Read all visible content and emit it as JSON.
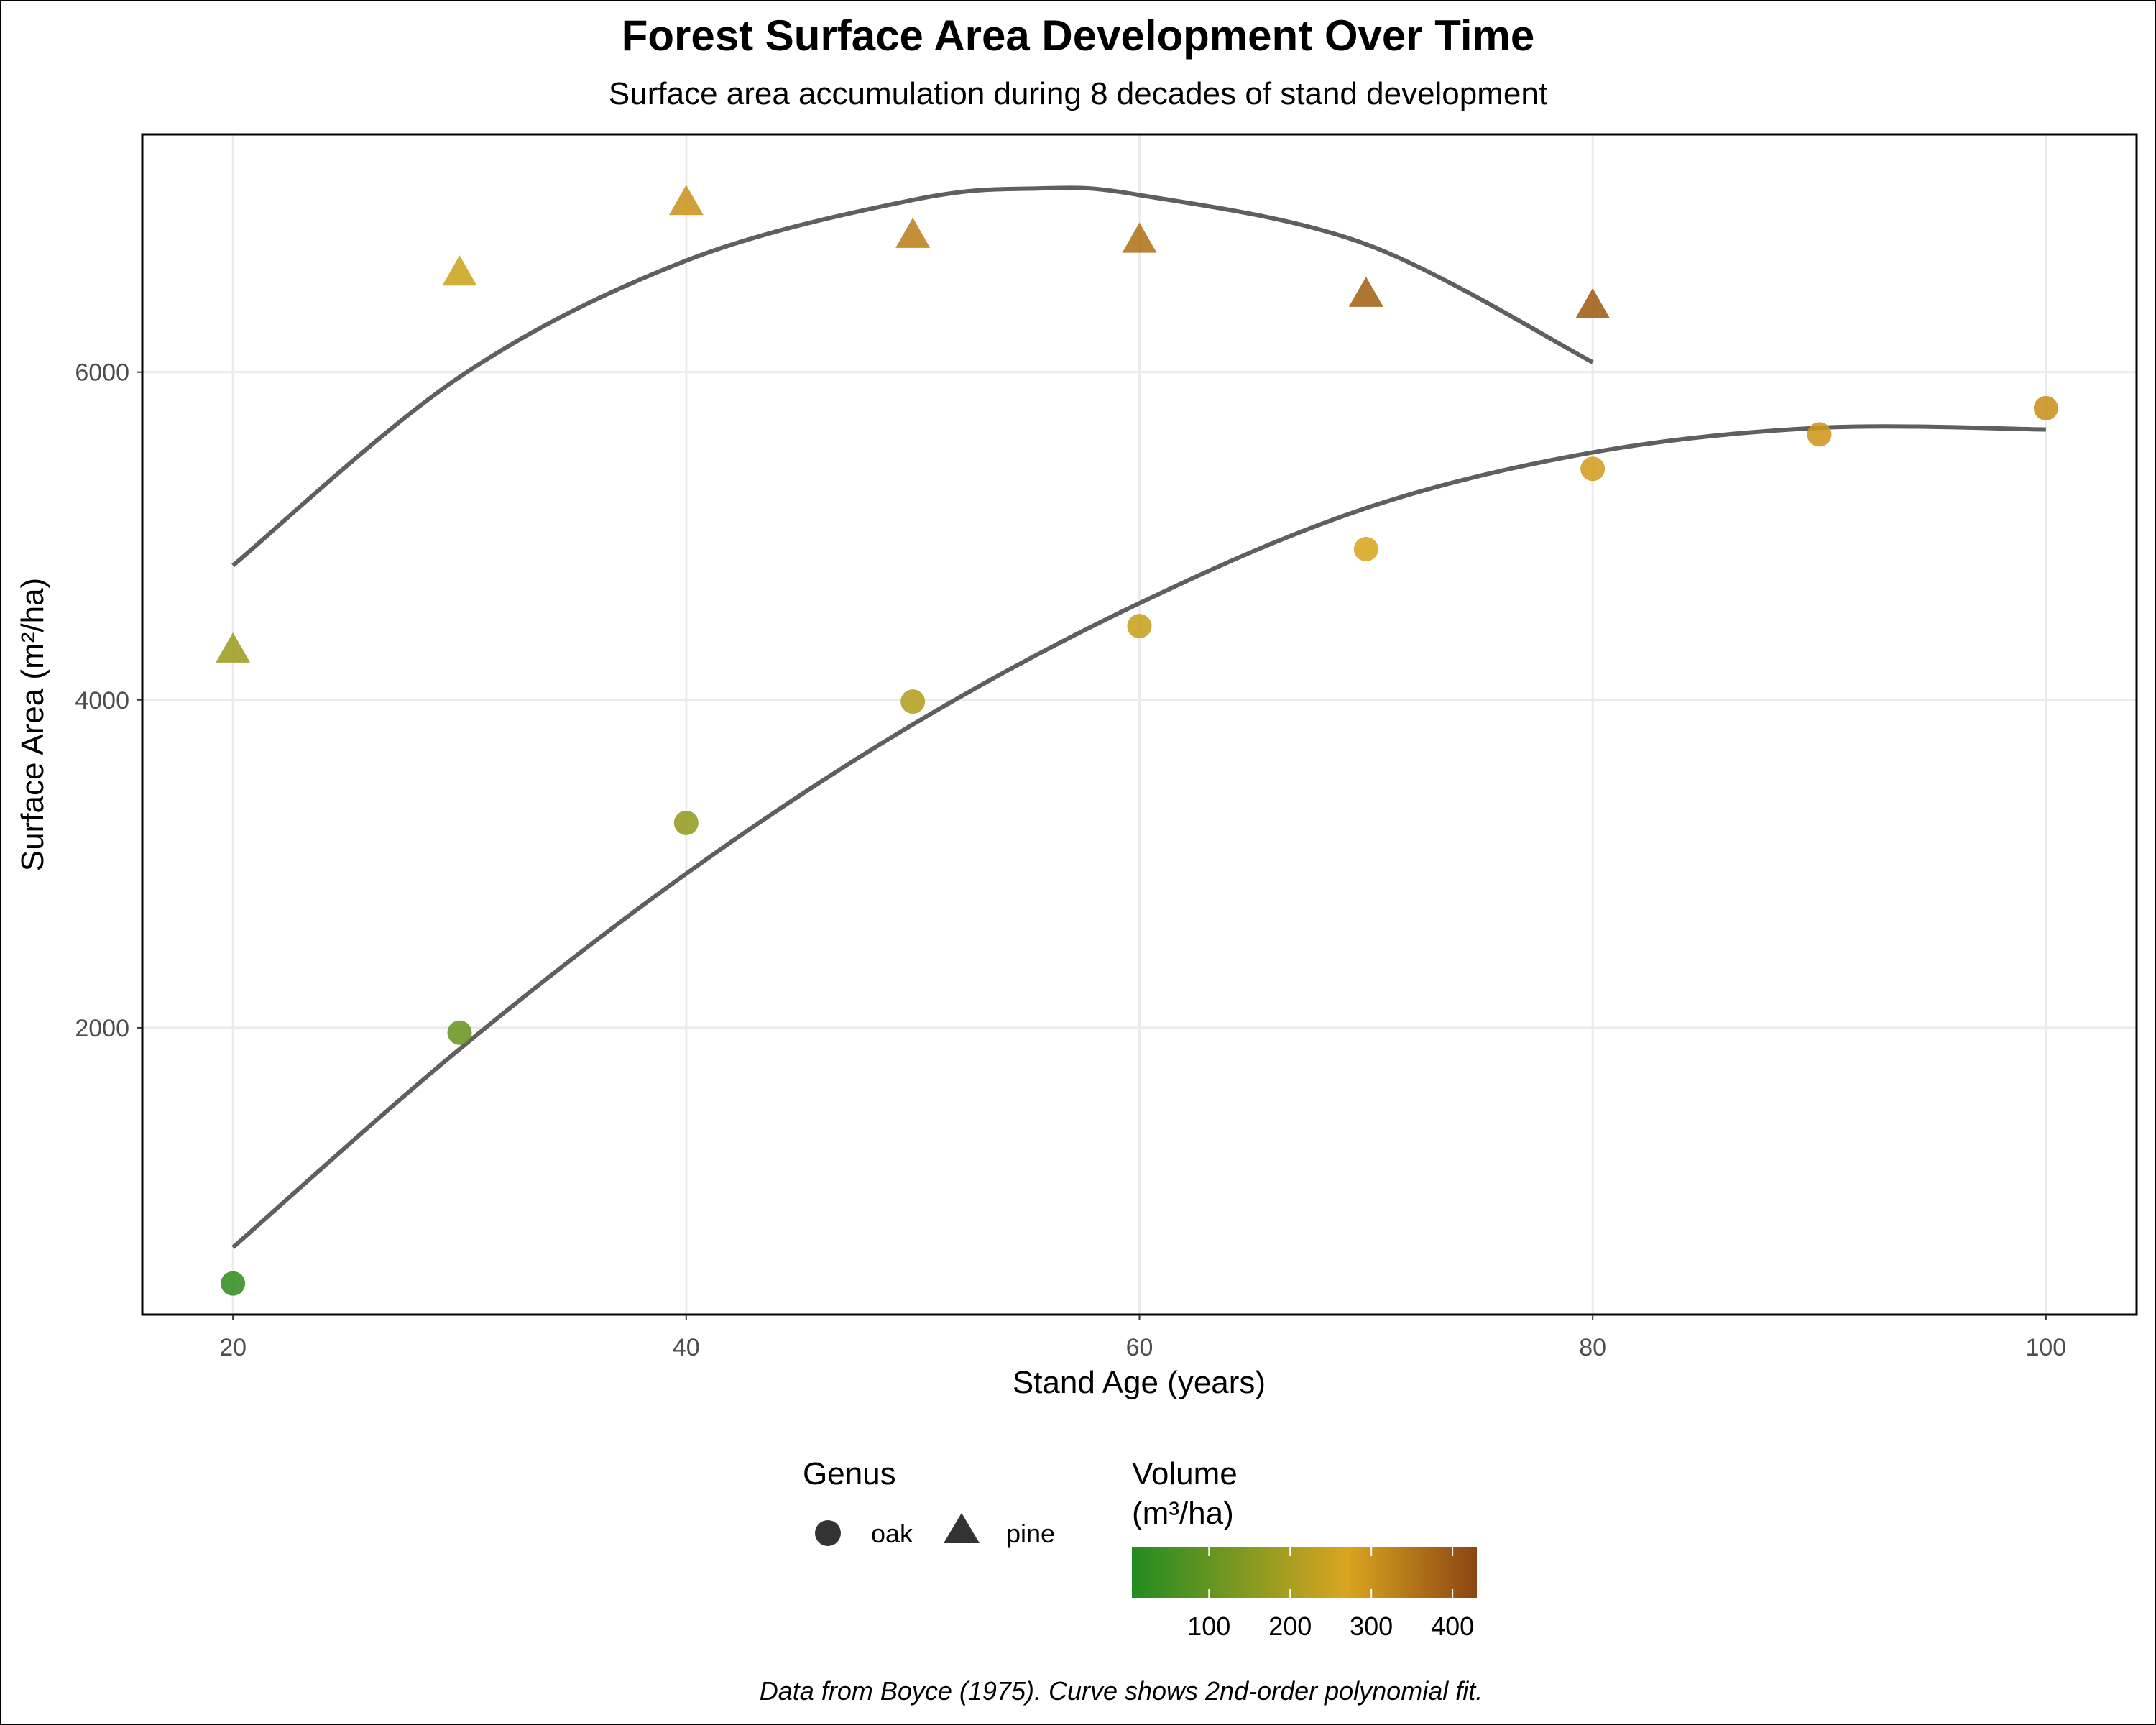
{
  "chart_data": {
    "type": "scatter",
    "title": "Forest Surface Area Development Over Time",
    "subtitle": "Surface area accumulation during 8 decades of stand development",
    "xlabel": "Stand Age (years)",
    "ylabel": "Surface Area (m²/ha)",
    "caption": "Data from Boyce (1975). Curve shows 2nd-order polynomial fit.",
    "xlim": [
      16,
      104
    ],
    "ylim": [
      250,
      7450
    ],
    "xticks": [
      20,
      40,
      60,
      80,
      100
    ],
    "yticks": [
      2000,
      4000,
      6000
    ],
    "grid": true,
    "legend_position": "bottom",
    "shape_legend": {
      "title": "Genus",
      "entries": [
        {
          "label": "oak",
          "shape": "circle"
        },
        {
          "label": "pine",
          "shape": "triangle"
        }
      ]
    },
    "color_legend": {
      "title_line1": "Volume",
      "title_line2": "(m³/ha)",
      "range": [
        5,
        430
      ],
      "ticks": [
        100,
        200,
        300,
        400
      ],
      "stops": [
        {
          "value": 5,
          "color": "#228B22"
        },
        {
          "value": 270,
          "color": "#DAA520"
        },
        {
          "value": 430,
          "color": "#8B4513"
        }
      ]
    },
    "series": [
      {
        "name": "oak",
        "shape": "circle",
        "points": [
          {
            "x": 20,
            "y": 440,
            "volume": 30
          },
          {
            "x": 30,
            "y": 1970,
            "volume": 110
          },
          {
            "x": 40,
            "y": 3250,
            "volume": 170
          },
          {
            "x": 50,
            "y": 3990,
            "volume": 210
          },
          {
            "x": 60,
            "y": 4450,
            "volume": 240
          },
          {
            "x": 70,
            "y": 4920,
            "volume": 265
          },
          {
            "x": 80,
            "y": 5410,
            "volume": 285
          },
          {
            "x": 90,
            "y": 5620,
            "volume": 295
          },
          {
            "x": 100,
            "y": 5780,
            "volume": 305
          }
        ],
        "fit": {
          "x": [
            20,
            30,
            40,
            50,
            60,
            70,
            80,
            90,
            100
          ],
          "y": [
            660,
            1870,
            2940,
            3850,
            4590,
            5170,
            5510,
            5660,
            5650
          ]
        }
      },
      {
        "name": "pine",
        "shape": "triangle",
        "points": [
          {
            "x": 20,
            "y": 4320,
            "volume": 180
          },
          {
            "x": 30,
            "y": 6620,
            "volume": 250
          },
          {
            "x": 40,
            "y": 7050,
            "volume": 300
          },
          {
            "x": 50,
            "y": 6850,
            "volume": 330
          },
          {
            "x": 60,
            "y": 6820,
            "volume": 355
          },
          {
            "x": 70,
            "y": 6490,
            "volume": 380
          },
          {
            "x": 80,
            "y": 6420,
            "volume": 390
          }
        ],
        "fit": {
          "x": [
            20,
            30,
            40,
            50,
            55.5,
            60,
            70,
            80
          ],
          "y": [
            4820,
            5970,
            6680,
            7050,
            7120,
            7080,
            6780,
            6060
          ]
        }
      }
    ]
  }
}
